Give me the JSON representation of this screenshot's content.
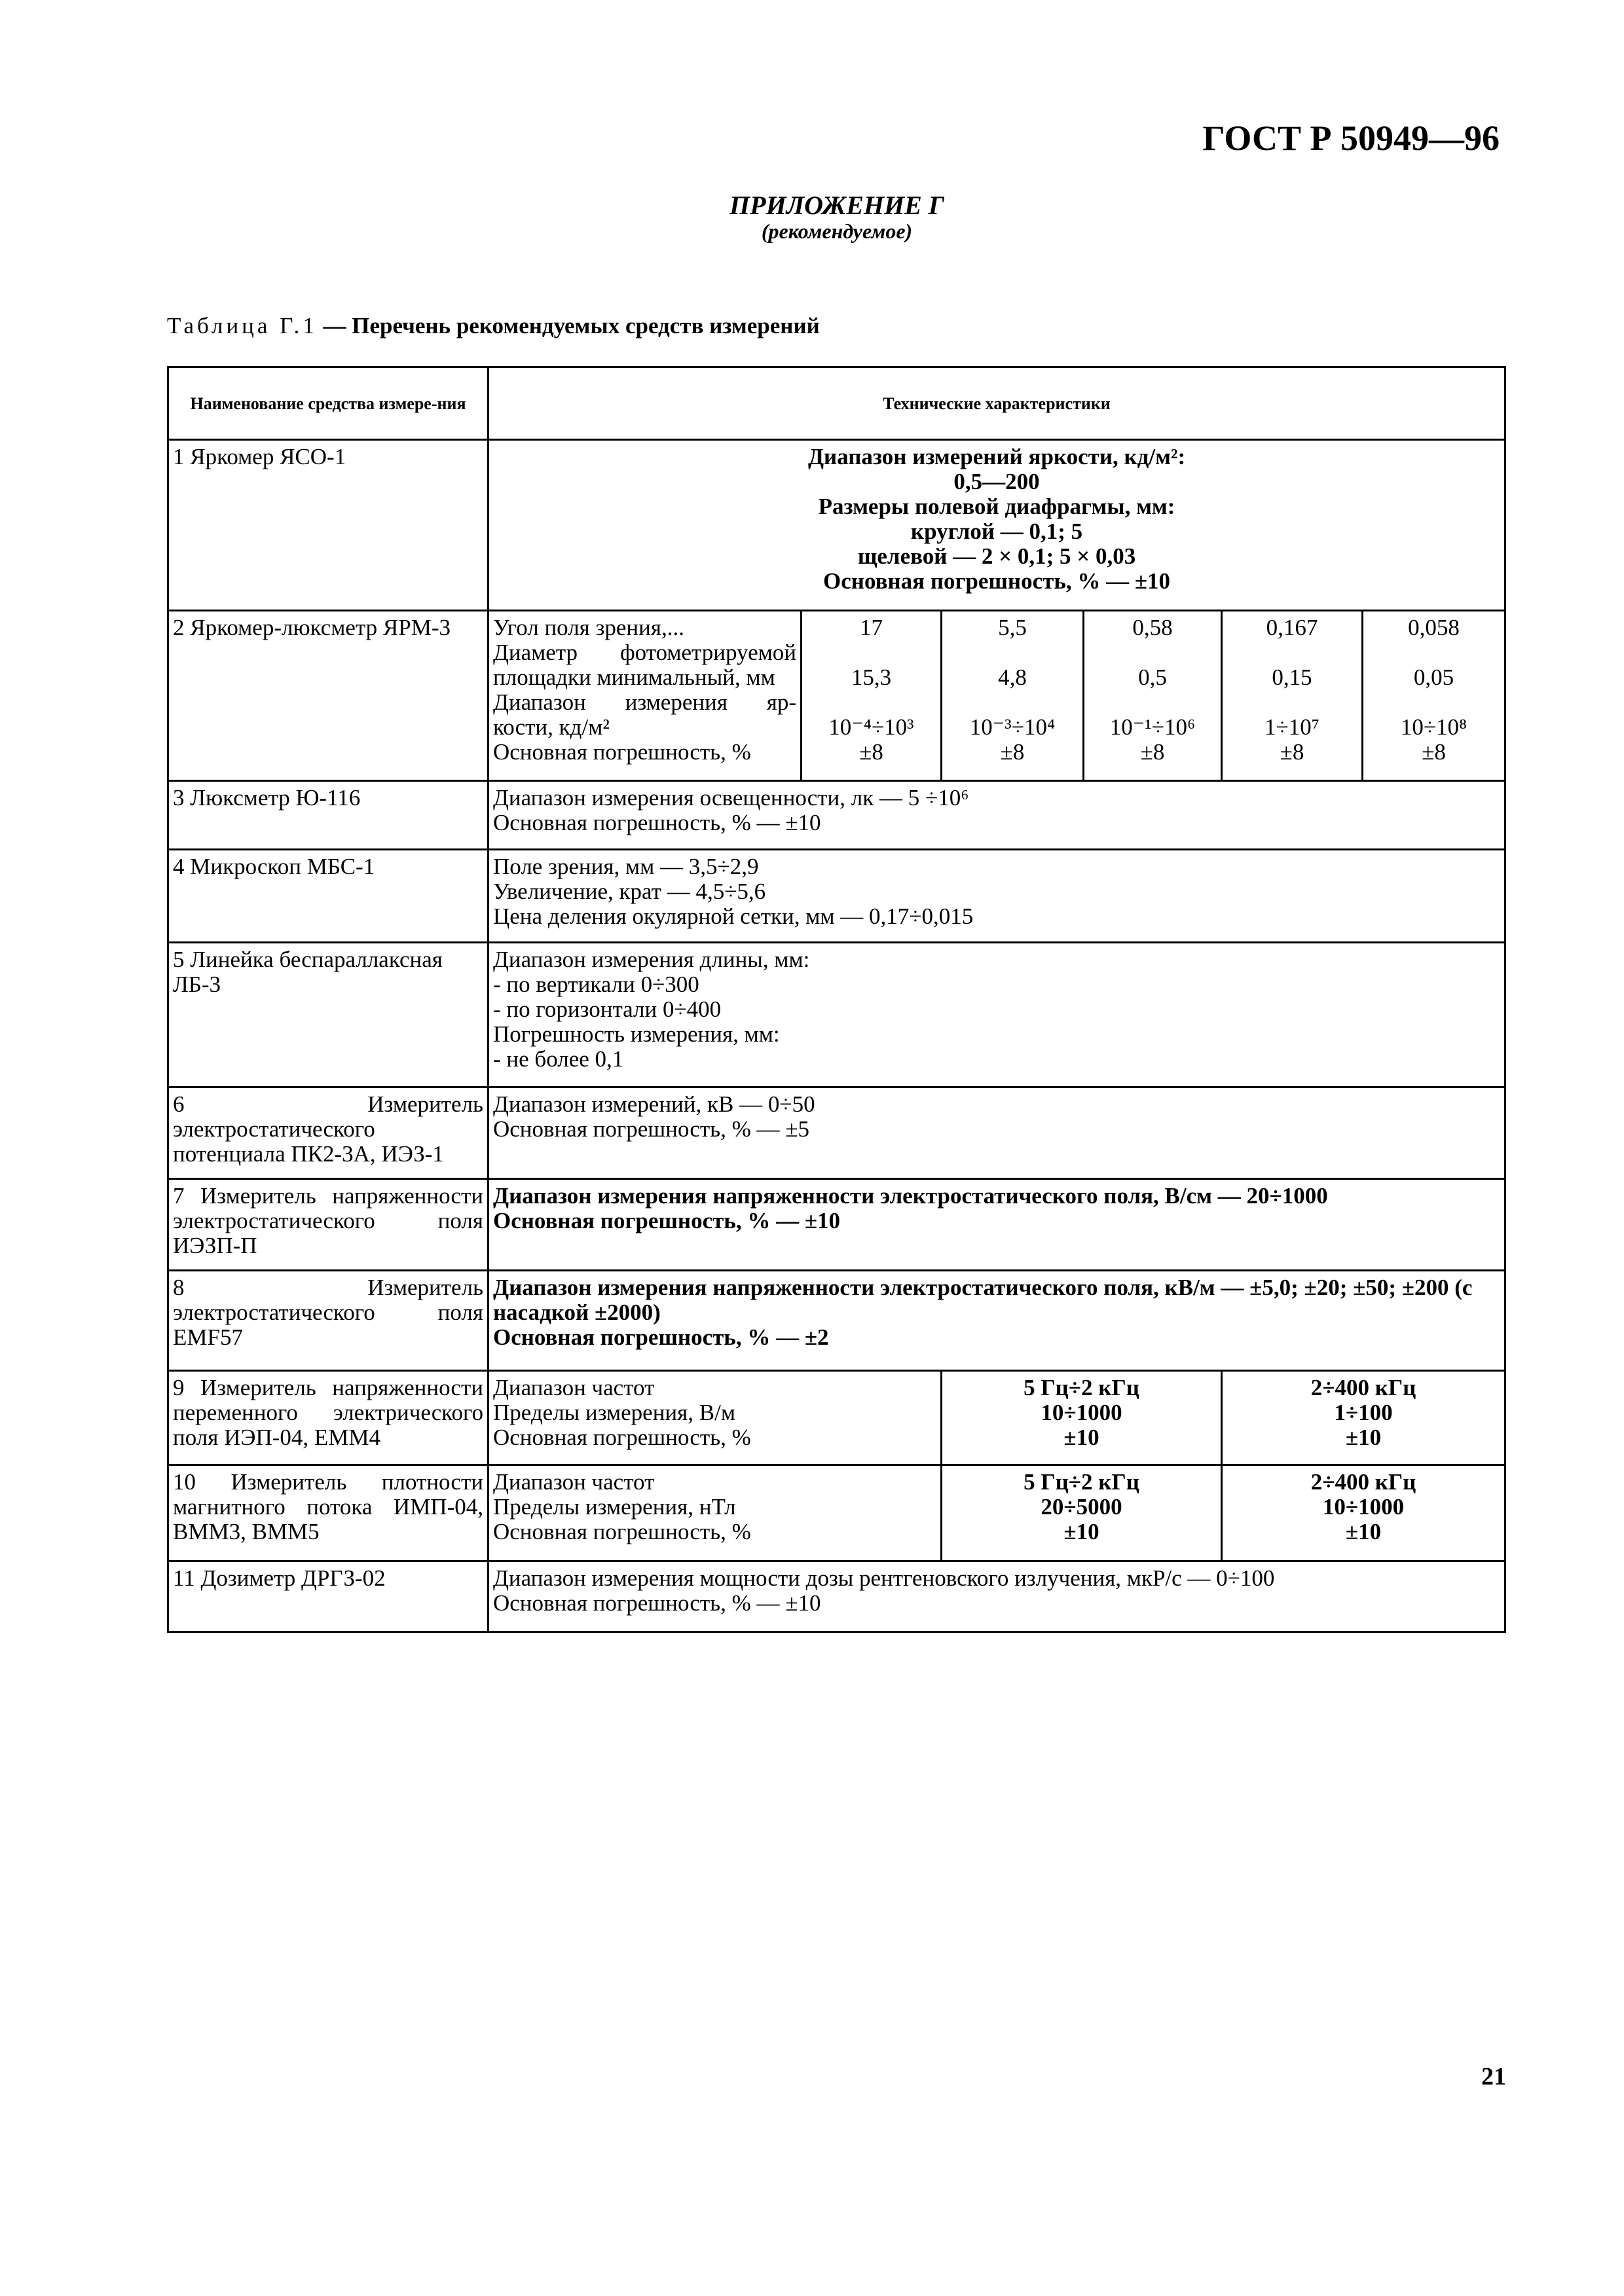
{
  "header": {
    "standard": "ГОСТ Р 50949—96"
  },
  "appendix": {
    "title": "ПРИЛОЖЕНИЕ Г",
    "subtitle": "(рекомендуемое)"
  },
  "caption": {
    "label": "Таблица Г.1",
    "text": " — Перечень рекомендуемых средств измерений"
  },
  "table": {
    "headers": [
      "Наименование средства измере-ния",
      "Технические характеристики"
    ],
    "rows": [
      {
        "name": "1 Яркомер ЯСО-1",
        "lines": [
          "Диапазон измерений яркости, кд/м²:",
          "0,5—200",
          "Размеры полевой диафрагмы, мм:",
          "круглой — 0,1; 5",
          "щелевой — 2 × 0,1; 5 × 0,03",
          "Основная погрешность, % — ±10"
        ]
      },
      {
        "name": "2 Яркомер-люксметр ЯРМ-3",
        "labels": [
          "Угол поля зрения,...",
          "Диаметр фотометрируемой",
          "площадки минимальный, мм",
          "Диапазон измерения яр-",
          "кости, кд/м²",
          "Основная погрешность, %"
        ],
        "columns": [
          {
            "angle": "17",
            "diameter": "15,3",
            "range": "10⁻⁴÷10³",
            "error": "±8"
          },
          {
            "angle": "5,5",
            "diameter": "4,8",
            "range": "10⁻³÷10⁴",
            "error": "±8"
          },
          {
            "angle": "0,58",
            "diameter": "0,5",
            "range": "10⁻¹÷10⁶",
            "error": "±8"
          },
          {
            "angle": "0,167",
            "diameter": "0,15",
            "range": "1÷10⁷",
            "error": "±8"
          },
          {
            "angle": "0,058",
            "diameter": "0,05",
            "range": "10÷10⁸",
            "error": "±8"
          }
        ]
      },
      {
        "name": "3 Люксметр Ю-116",
        "lines": [
          "Диапазон измерения освещенности, лк — 5 ÷10⁶",
          "Основная погрешность, % — ±10"
        ]
      },
      {
        "name": "4 Микроскоп МБС-1",
        "lines": [
          "Поле зрения, мм — 3,5÷2,9",
          "Увеличение, крат — 4,5÷5,6",
          "Цена деления окулярной сетки, мм — 0,17÷0,015"
        ]
      },
      {
        "name": "5 Линейка беспараллаксная ЛБ-3",
        "lines": [
          "Диапазон измерения длины, мм:",
          "- по вертикали 0÷300",
          "- по горизонтали 0÷400",
          "Погрешность измерения, мм:",
          "- не более 0,1"
        ]
      },
      {
        "name": "6 Измеритель электростатического потенциала ПК2-3А, ИЭЗ-1",
        "lines": [
          "Диапазон измерений, кВ — 0÷50",
          "Основная погрешность, % — ±5"
        ]
      },
      {
        "name": "7 Измеритель напряженности электростатического поля ИЭЗП-П",
        "lines": [
          "Диапазон измерения напряженности электростатического поля, В/см — 20÷1000",
          "Основная погрешность, % — ±10"
        ]
      },
      {
        "name": "8 Измеритель электростатического поля EMF57",
        "lines": [
          "Диапазон измерения напряженности электростатического поля, кВ/м — ±5,0; ±20; ±50; ±200 (с насадкой ±2000)",
          "Основная погрешность, % — ±2"
        ]
      },
      {
        "name": "9 Измеритель напряженности переменного электрического поля ИЭП-04, ЕММ4",
        "labels": [
          "Диапазон частот",
          "Пределы измерения, В/м",
          "Основная погрешность, %"
        ],
        "columns": [
          [
            "5 Гц÷2 кГц",
            "10÷1000",
            "±10"
          ],
          [
            "2÷400 кГц",
            "1÷100",
            "±10"
          ]
        ]
      },
      {
        "name": "10 Измеритель плотности магнитного потока ИМП-04, ВММ3, ВММ5",
        "labels": [
          "Диапазон частот",
          "Пределы измерения, нТл",
          "Основная погрешность, %"
        ],
        "columns": [
          [
            "5 Гц÷2 кГц",
            "20÷5000",
            "±10"
          ],
          [
            "2÷400 кГц",
            "10÷1000",
            "±10"
          ]
        ]
      },
      {
        "name": "11 Дозиметр ДРГЗ-02",
        "lines": [
          "Диапазон измерения мощности дозы рентгеновского излучения, мкР/с — 0÷100",
          "Основная погрешность, % — ±10"
        ]
      }
    ]
  },
  "page_number": "21"
}
